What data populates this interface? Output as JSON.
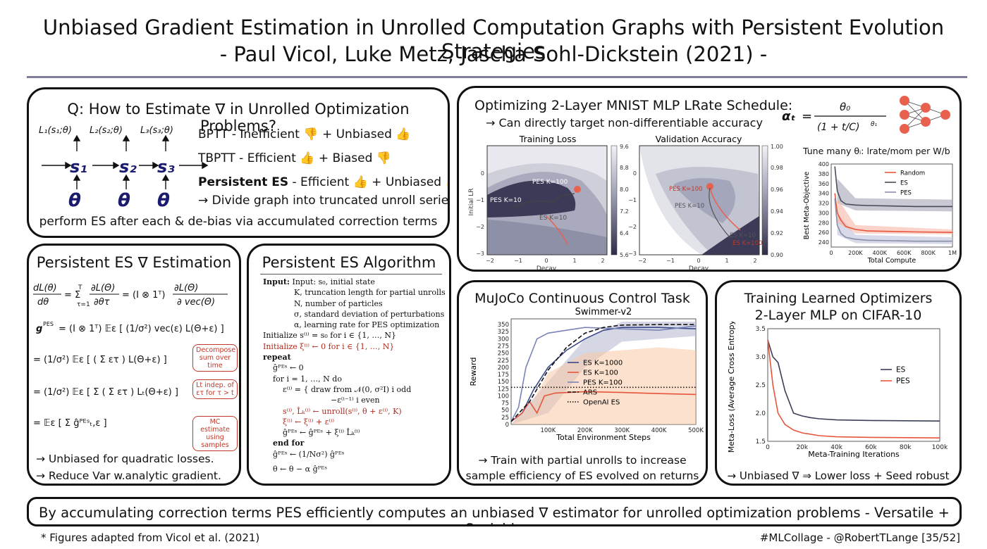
{
  "header": {
    "title": "Unbiased Gradient Estimation in Unrolled Computation Graphs with Persistent Evolution Strategies",
    "authors": "- Paul Vicol, Luke Metz, Jascha Sohl-Dickstein (2021) -"
  },
  "q_panel": {
    "title": "Q: How to Estimate ∇ in Unrolled Optimization Problems?",
    "row1": "BPTT - Inefficient 👎 + Unbiased 👍",
    "row2": "TBPTT - Efficient 👍 + Biased 👎",
    "row3_bold": "Persistent ES",
    "row3_rest": " - Efficient 👍 + Unbiased 👍",
    "row4": "→ Divide graph into truncated unroll series,",
    "row5": "perform ES after each & de-bias via accumulated correction terms"
  },
  "estimation_panel": {
    "title": "Persistent ES ∇ Estimation",
    "box1": "Decompose sum over time",
    "box2": "Lt indep. of ετ for τ > t",
    "box3": "MC estimate using samples",
    "bullet1": "→ Unbiased for quadratic losses.",
    "bullet2": "→ Reduce Var w.analytic gradient."
  },
  "algorithm_panel": {
    "title": "Persistent ES Algorithm",
    "lines": [
      "Input: s₀, initial state",
      "K, truncation length for partial unrolls",
      "N, number of particles",
      "σ, standard deviation of perturbations",
      "α, learning rate for PES optimization",
      "Initialize s⁽ⁱ⁾ = s₀ for i ∈ {1, …, N}",
      "Initialize ξ⁽ⁱ⁾ ← 0 for i ∈ {1, …, N}",
      "repeat",
      "ĝᴾᴱˢ ← 0",
      "for i = 1, …, N do",
      "ε⁽ⁱ⁾ = { draw from 𝒩(0, σ²I)   i odd",
      "−ε⁽ⁱ⁻¹⁾   i even",
      "s⁽ⁱ⁾, L̂ₖ⁽ⁱ⁾ ← unroll(s⁽ⁱ⁾, θ + ε⁽ⁱ⁾, K)",
      "ξ⁽ⁱ⁾ ← ξ⁽ⁱ⁾ + ε⁽ⁱ⁾",
      "ĝᴾᴱˢ ← ĝᴾᴱˢ + ξ⁽ⁱ⁾ L̂ₖ⁽ⁱ⁾",
      "end for",
      "ĝᴾᴱˢ ← (1/Nσ²) ĝᴾᴱˢ",
      "θ ← θ − α ĝᴾᴱˢ"
    ]
  },
  "mnist_panel": {
    "title": "Optimizing 2-Layer MNIST MLP LRate Schedule:",
    "subtitle": "→ Can directly target non-differentiable accuracy",
    "tune": "Tune many θᵢ: lrate/mom per W/b",
    "heat_left_title": "Training Loss",
    "heat_right_title": "Validation Accuracy",
    "heat_xlabel": "Decay",
    "heat_ylabel": "Initial LR",
    "heat_xticks": [
      "−2",
      "−1",
      "0",
      "1",
      "2"
    ],
    "heat_yticks": [
      "0",
      "−1",
      "−2",
      "−3"
    ],
    "cbar_left": [
      "9.6",
      "8.8",
      "8.0",
      "7.2",
      "6.4",
      "5.6"
    ],
    "cbar_right": [
      "1.00",
      "0.98",
      "0.96",
      "0.94",
      "0.92",
      "0.90"
    ],
    "traj_labels_left": [
      "PES K=10",
      "PES K=100",
      "ES K=10"
    ],
    "traj_labels_right": [
      "PES K=100",
      "PES K=10",
      "ES K=10",
      "ES K=100"
    ]
  },
  "mujoco_panel": {
    "title": "MuJoCo Continuous Control Task",
    "footer1": "→ Train with partial unrolls to increase",
    "footer2": "sample efficiency of ES evolved on returns"
  },
  "learned_opt_panel": {
    "title1": "Training Learned Optimizers",
    "title2": "2-Layer MLP on CIFAR-10",
    "footer": "→ Unbiased ∇ ⇒ Lower loss + Seed robust"
  },
  "bottom_banner": "By accumulating correction terms PES efficiently computes an unbiased ∇ estimator for unrolled optimization problems - Versatile + Scalable",
  "footnote": "* Figures adapted from Vicol et al. (2021)",
  "signature": "#MLCollage - @RobertTLange [35/52]",
  "chart_data": [
    {
      "type": "line",
      "title": "",
      "xlabel": "Total Compute",
      "ylabel": "Best Meta-Objective",
      "xlim": [
        0,
        1000000
      ],
      "ylim": [
        230,
        400
      ],
      "xticks": [
        "0",
        "200K",
        "400K",
        "600K",
        "800K",
        "1M"
      ],
      "yticks": [
        "240",
        "260",
        "280",
        "300",
        "320",
        "340",
        "360",
        "380",
        "400"
      ],
      "legend_position": "top-right",
      "series": [
        {
          "name": "Random",
          "color": "#e8553d",
          "x": [
            30000,
            50000,
            80000,
            120000,
            200000,
            300000,
            500000,
            700000,
            1000000
          ],
          "y": [
            340,
            300,
            285,
            272,
            266,
            263,
            262,
            261,
            260
          ]
        },
        {
          "name": "ES",
          "color": "#4a4a58",
          "x": [
            30000,
            50000,
            80000,
            120000,
            200000,
            300000,
            500000,
            700000,
            1000000
          ],
          "y": [
            395,
            345,
            325,
            318,
            316,
            315,
            314,
            313,
            313
          ]
        },
        {
          "name": "PES",
          "color": "#8a90a8",
          "x": [
            30000,
            50000,
            80000,
            120000,
            200000,
            300000,
            500000,
            700000,
            1000000
          ],
          "y": [
            330,
            275,
            258,
            250,
            246,
            244,
            243,
            242,
            242
          ]
        }
      ]
    },
    {
      "type": "line",
      "title": "Swimmer-v2",
      "xlabel": "Total Environment Steps",
      "ylabel": "Reward",
      "xlim": [
        0,
        500000
      ],
      "ylim": [
        0,
        370
      ],
      "xticks": [
        "100K",
        "200K",
        "300K",
        "400K",
        "500K"
      ],
      "yticks": [
        "0",
        "25",
        "50",
        "75",
        "100",
        "125",
        "150",
        "175",
        "200",
        "225",
        "250",
        "275",
        "300",
        "325",
        "350"
      ],
      "legend_position": "center-right",
      "series": [
        {
          "name": "ES K=1000",
          "color": "#3a4a8a",
          "style": "solid",
          "x": [
            0,
            30000,
            60000,
            100000,
            150000,
            200000,
            250000,
            300000,
            400000,
            500000
          ],
          "y": [
            10,
            40,
            120,
            200,
            260,
            300,
            330,
            340,
            340,
            335
          ]
        },
        {
          "name": "ES K=100",
          "color": "#e8553d",
          "style": "solid",
          "x": [
            0,
            30000,
            50000,
            70000,
            90000,
            120000,
            200000,
            300000,
            400000,
            500000
          ],
          "y": [
            10,
            40,
            80,
            40,
            100,
            110,
            115,
            112,
            108,
            105
          ]
        },
        {
          "name": "PES K=100",
          "color": "#7a84b8",
          "style": "solid",
          "x": [
            0,
            20000,
            40000,
            70000,
            100000,
            150000,
            200000,
            300000,
            400000,
            500000
          ],
          "y": [
            10,
            60,
            200,
            300,
            320,
            330,
            340,
            335,
            330,
            345
          ]
        },
        {
          "name": "ARS",
          "color": "#111111",
          "style": "dashed",
          "x": [
            0,
            50000,
            100000,
            150000,
            200000,
            250000,
            300000,
            400000,
            500000
          ],
          "y": [
            10,
            80,
            190,
            270,
            320,
            340,
            348,
            350,
            350
          ]
        },
        {
          "name": "OpenAI ES",
          "color": "#111111",
          "style": "dotted",
          "x": [
            0,
            500000
          ],
          "y": [
            130,
            130
          ]
        }
      ]
    },
    {
      "type": "line",
      "title": "",
      "xlabel": "Meta-Training Iterations",
      "ylabel": "Meta-Loss (Average Cross Entropy)",
      "xlim": [
        0,
        100000
      ],
      "ylim": [
        1.5,
        3.5
      ],
      "xticks": [
        "0",
        "20k",
        "40k",
        "60k",
        "80k",
        "100k"
      ],
      "yticks": [
        "1.5",
        "2.0",
        "2.5",
        "3.0",
        "3.5"
      ],
      "legend_position": "center-right",
      "series": [
        {
          "name": "ES",
          "color": "#3b3f55",
          "x": [
            0,
            3000,
            6000,
            10000,
            15000,
            20000,
            25000,
            30000,
            40000,
            60000,
            100000
          ],
          "y": [
            3.3,
            3.0,
            2.9,
            2.4,
            2.0,
            1.95,
            1.92,
            1.9,
            1.88,
            1.87,
            1.86
          ]
        },
        {
          "name": "PES",
          "color": "#e8553d",
          "x": [
            0,
            3000,
            6000,
            10000,
            15000,
            20000,
            30000,
            40000,
            60000,
            100000
          ],
          "y": [
            3.3,
            2.5,
            2.0,
            1.8,
            1.7,
            1.65,
            1.6,
            1.58,
            1.57,
            1.56
          ]
        }
      ]
    }
  ]
}
